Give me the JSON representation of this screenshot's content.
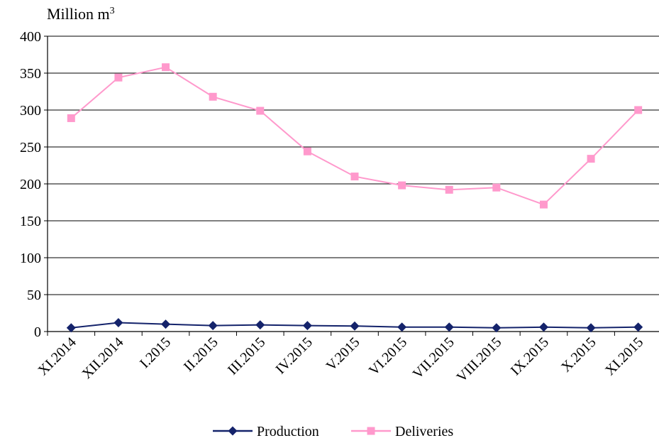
{
  "chart_data": {
    "type": "line",
    "ylabel": "Million m",
    "ylabel_superscript": "3",
    "categories": [
      "XI.2014",
      "XII.2014",
      "I.2015",
      "II.2015",
      "III.2015",
      "IV.2015",
      "V.2015",
      "VI.2015",
      "VII.2015",
      "VIII.2015",
      "IX.2015",
      "X.2015",
      "XI.2015"
    ],
    "ylim": [
      0,
      400
    ],
    "yticks": [
      0,
      50,
      100,
      150,
      200,
      250,
      300,
      350,
      400
    ],
    "grid": true,
    "legend_position": "bottom",
    "series": [
      {
        "name": "Production",
        "color": "#14236b",
        "marker": "diamond",
        "values": [
          5,
          12,
          10,
          8,
          9,
          8,
          7.5,
          6,
          6,
          5,
          6,
          5,
          6
        ]
      },
      {
        "name": "Deliveries",
        "color": "#ff99cc",
        "marker": "square",
        "values": [
          289,
          344,
          358,
          318,
          299,
          244,
          210,
          198,
          192,
          195,
          172,
          234,
          300
        ]
      }
    ]
  }
}
